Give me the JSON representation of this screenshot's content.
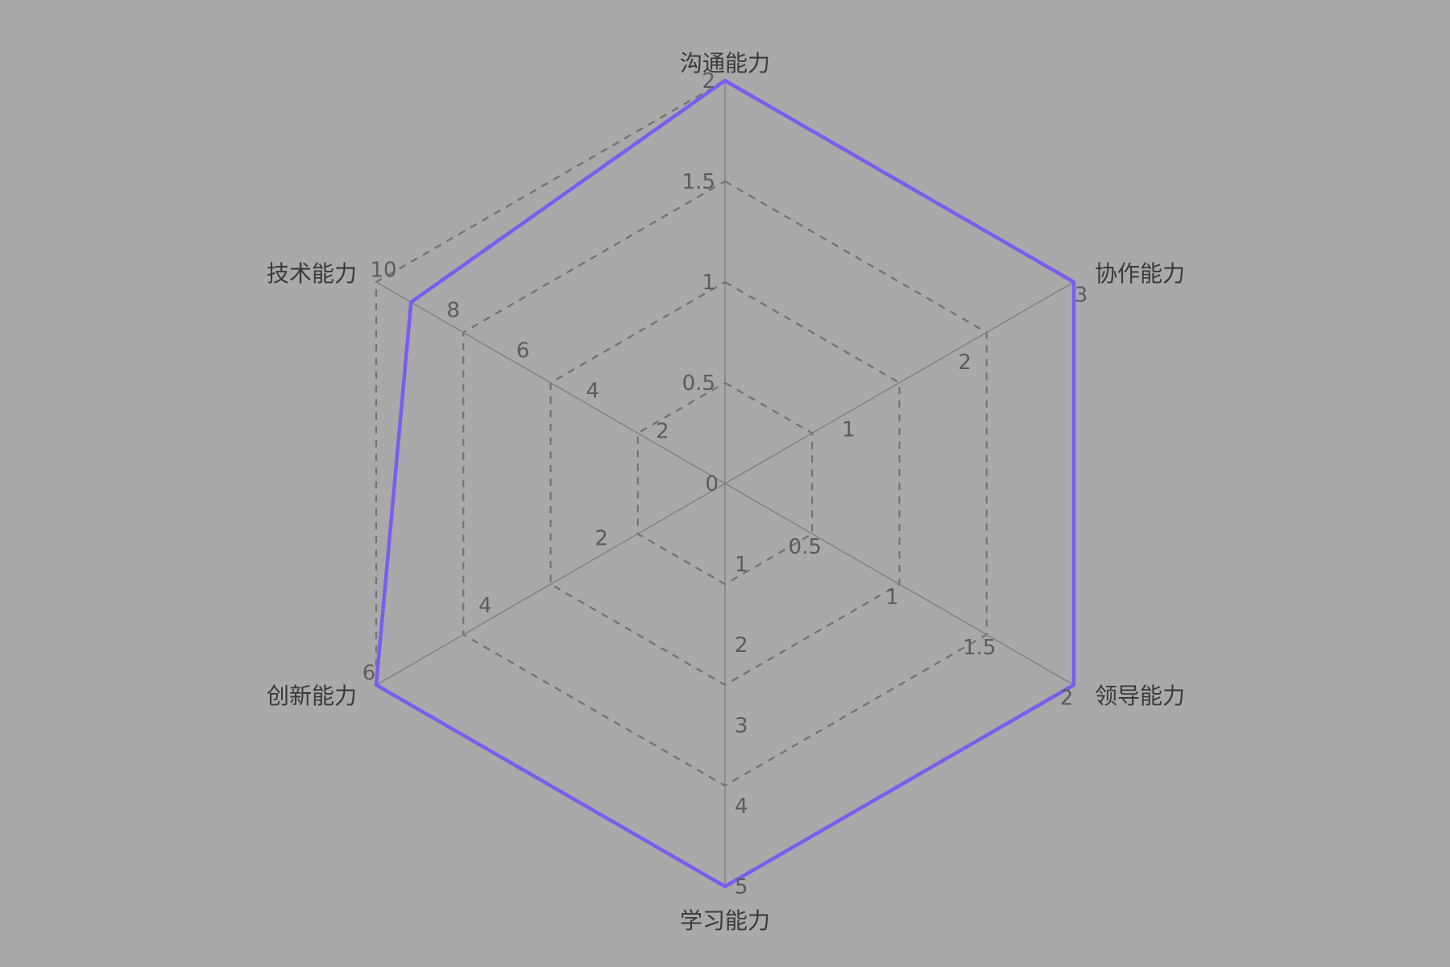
{
  "chart_data": {
    "type": "radar",
    "axes": [
      {
        "label": "沟通能力",
        "max": 2,
        "ticks": [
          "0.5",
          "1",
          "1.5",
          "2"
        ],
        "value": 2
      },
      {
        "label": "协作能力",
        "max": 3,
        "ticks": [
          "1",
          "2",
          "3"
        ],
        "value": 3
      },
      {
        "label": "领导能力",
        "max": 2,
        "ticks": [
          "0.5",
          "1",
          "1.5",
          "2"
        ],
        "value": 2
      },
      {
        "label": "学习能力",
        "max": 5,
        "ticks": [
          "1",
          "2",
          "3",
          "4",
          "5"
        ],
        "value": 5
      },
      {
        "label": "创新能力",
        "max": 6,
        "ticks": [
          "2",
          "4",
          "6"
        ],
        "value": 6
      },
      {
        "label": "技术能力",
        "max": 10,
        "ticks": [
          "2",
          "4",
          "6",
          "8",
          "10"
        ],
        "value": 9
      }
    ],
    "center_label": "0",
    "grid_rings": 4,
    "grid_style": "dashed",
    "series_color": "#7b5cf0",
    "background": "#a9a9a9"
  }
}
